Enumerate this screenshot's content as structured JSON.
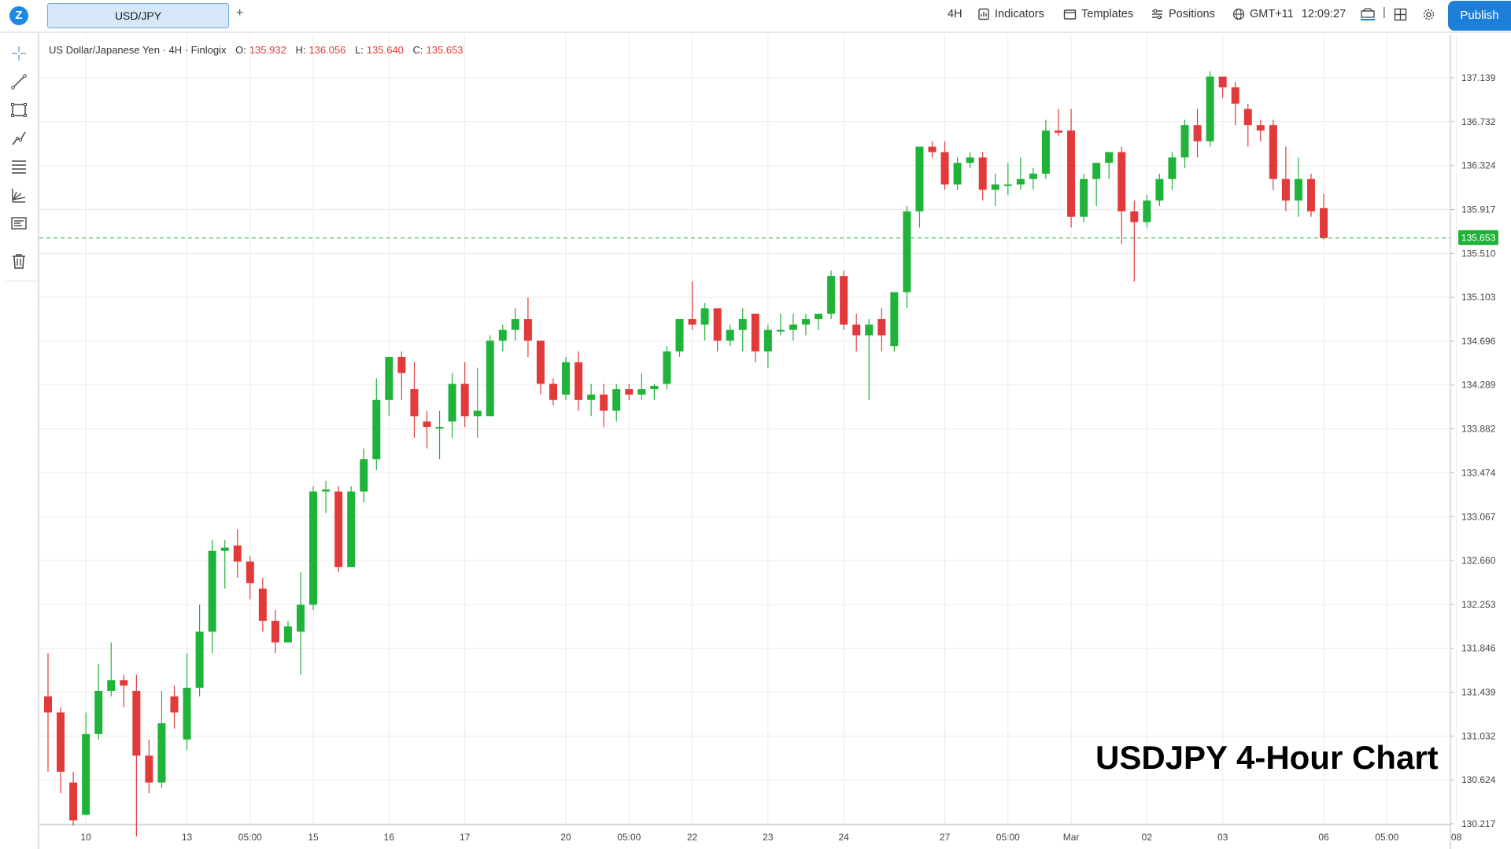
{
  "topbar": {
    "logo_letter": "Z",
    "symbol_tab": "USD/JPY",
    "add_tab": "+",
    "interval": "4H",
    "indicators": "Indicators",
    "templates": "Templates",
    "positions": "Positions",
    "timezone": "GMT+11",
    "clock": "12:09:27",
    "separator": "|",
    "publish": "Publish"
  },
  "sidebar": {
    "tools": [
      "crosshair-icon",
      "trend-line-icon",
      "rectangle-icon",
      "fib-icon",
      "parallel-channel-icon",
      "pitchfork-icon",
      "text-note-icon",
      "trash-icon"
    ]
  },
  "legend": {
    "name": "US Dollar/Japanese Yen · 4H · Finlogix",
    "o_label": "O:",
    "o": "135.932",
    "h_label": "H:",
    "h": "136.056",
    "l_label": "L:",
    "l": "135.640",
    "c_label": "C:",
    "c": "135.653"
  },
  "watermark": "USDJPY 4-Hour Chart",
  "colors": {
    "up": "#1fb33a",
    "down": "#e23a3a",
    "accent": "#1e7fd8",
    "last_price_bg": "#1fb33a"
  },
  "chart_data": {
    "type": "candlestick",
    "symbol": "USD/JPY",
    "interval": "4H",
    "last_price": "135.653",
    "ylim": [
      130.217,
      137.139
    ],
    "y_ticks": [
      "137.139",
      "136.732",
      "136.324",
      "135.917",
      "135.510",
      "135.103",
      "134.696",
      "134.289",
      "133.882",
      "133.474",
      "133.067",
      "132.660",
      "132.253",
      "131.846",
      "131.439",
      "131.032",
      "130.624",
      "130.217"
    ],
    "x_ticks": [
      {
        "label": "10",
        "i": 3
      },
      {
        "label": "13",
        "i": 11
      },
      {
        "label": "05:00",
        "i": 16
      },
      {
        "label": "15",
        "i": 21
      },
      {
        "label": "16",
        "i": 27
      },
      {
        "label": "17",
        "i": 33
      },
      {
        "label": "20",
        "i": 41
      },
      {
        "label": "05:00",
        "i": 46
      },
      {
        "label": "22",
        "i": 51
      },
      {
        "label": "23",
        "i": 57
      },
      {
        "label": "24",
        "i": 63
      },
      {
        "label": "27",
        "i": 71
      },
      {
        "label": "05:00",
        "i": 76
      },
      {
        "label": "Mar",
        "i": 81
      },
      {
        "label": "02",
        "i": 87
      },
      {
        "label": "03",
        "i": 93
      },
      {
        "label": "06",
        "i": 101
      },
      {
        "label": "05:00",
        "i": 106
      },
      {
        "label": "08",
        "i": 111.5
      }
    ],
    "candles": [
      [
        131.4,
        131.8,
        130.7,
        131.25
      ],
      [
        131.25,
        131.3,
        130.5,
        130.7
      ],
      [
        130.6,
        130.7,
        130.2,
        130.25
      ],
      [
        130.3,
        131.25,
        130.3,
        131.05
      ],
      [
        131.05,
        131.7,
        131.0,
        131.45
      ],
      [
        131.45,
        131.9,
        131.4,
        131.55
      ],
      [
        131.55,
        131.6,
        131.3,
        131.5
      ],
      [
        131.45,
        131.6,
        130.1,
        130.85
      ],
      [
        130.85,
        131.0,
        130.5,
        130.6
      ],
      [
        130.6,
        131.45,
        130.55,
        131.15
      ],
      [
        131.4,
        131.5,
        131.1,
        131.25
      ],
      [
        131.0,
        131.8,
        130.9,
        131.48
      ],
      [
        131.48,
        132.25,
        131.4,
        132.0
      ],
      [
        132.0,
        132.85,
        131.8,
        132.75
      ],
      [
        132.75,
        132.85,
        132.4,
        132.78
      ],
      [
        132.8,
        132.95,
        132.5,
        132.65
      ],
      [
        132.65,
        132.7,
        132.3,
        132.45
      ],
      [
        132.4,
        132.5,
        132.0,
        132.1
      ],
      [
        132.1,
        132.2,
        131.8,
        131.9
      ],
      [
        131.9,
        132.1,
        131.9,
        132.05
      ],
      [
        132.0,
        132.55,
        131.6,
        132.25
      ],
      [
        132.25,
        133.35,
        132.2,
        133.3
      ],
      [
        133.3,
        133.4,
        133.1,
        133.32
      ],
      [
        133.3,
        133.35,
        132.55,
        132.6
      ],
      [
        132.6,
        133.35,
        132.6,
        133.3
      ],
      [
        133.3,
        133.7,
        133.2,
        133.6
      ],
      [
        133.6,
        134.35,
        133.5,
        134.15
      ],
      [
        134.15,
        134.55,
        134.0,
        134.55
      ],
      [
        134.55,
        134.6,
        134.15,
        134.4
      ],
      [
        134.25,
        134.5,
        133.8,
        134.0
      ],
      [
        133.95,
        134.05,
        133.7,
        133.9
      ],
      [
        133.9,
        134.05,
        133.6,
        133.9
      ],
      [
        133.95,
        134.4,
        133.8,
        134.3
      ],
      [
        134.3,
        134.5,
        133.9,
        134.0
      ],
      [
        134.0,
        134.45,
        133.8,
        134.05
      ],
      [
        134.0,
        134.75,
        134.0,
        134.7
      ],
      [
        134.7,
        134.85,
        134.6,
        134.8
      ],
      [
        134.8,
        135.0,
        134.7,
        134.9
      ],
      [
        134.9,
        135.1,
        134.55,
        134.7
      ],
      [
        134.7,
        134.7,
        134.2,
        134.3
      ],
      [
        134.3,
        134.35,
        134.1,
        134.15
      ],
      [
        134.2,
        134.55,
        134.15,
        134.5
      ],
      [
        134.5,
        134.6,
        134.05,
        134.15
      ],
      [
        134.15,
        134.3,
        134.0,
        134.2
      ],
      [
        134.2,
        134.3,
        133.9,
        134.05
      ],
      [
        134.05,
        134.3,
        133.95,
        134.25
      ],
      [
        134.25,
        134.3,
        134.15,
        134.2
      ],
      [
        134.2,
        134.4,
        134.15,
        134.25
      ],
      [
        134.25,
        134.3,
        134.15,
        134.28
      ],
      [
        134.3,
        134.65,
        134.25,
        134.6
      ],
      [
        134.6,
        134.9,
        134.55,
        134.9
      ],
      [
        134.9,
        135.25,
        134.8,
        134.85
      ],
      [
        134.85,
        135.05,
        134.7,
        135.0
      ],
      [
        135.0,
        135.0,
        134.6,
        134.7
      ],
      [
        134.7,
        134.85,
        134.65,
        134.8
      ],
      [
        134.8,
        135.0,
        134.6,
        134.9
      ],
      [
        134.95,
        134.95,
        134.5,
        134.6
      ],
      [
        134.6,
        134.85,
        134.45,
        134.8
      ],
      [
        134.8,
        134.95,
        134.75,
        134.8
      ],
      [
        134.8,
        134.95,
        134.7,
        134.85
      ],
      [
        134.85,
        134.95,
        134.75,
        134.9
      ],
      [
        134.9,
        134.95,
        134.8,
        134.95
      ],
      [
        134.95,
        135.35,
        134.9,
        135.3
      ],
      [
        135.3,
        135.35,
        134.8,
        134.85
      ],
      [
        134.85,
        134.95,
        134.6,
        134.75
      ],
      [
        134.75,
        134.9,
        134.15,
        134.85
      ],
      [
        134.9,
        135.0,
        134.6,
        134.75
      ],
      [
        134.65,
        135.15,
        134.6,
        135.15
      ],
      [
        135.15,
        135.95,
        135.0,
        135.9
      ],
      [
        135.9,
        136.5,
        135.75,
        136.5
      ],
      [
        136.5,
        136.55,
        136.4,
        136.45
      ],
      [
        136.45,
        136.55,
        136.1,
        136.15
      ],
      [
        136.15,
        136.4,
        136.1,
        136.35
      ],
      [
        136.35,
        136.45,
        136.3,
        136.4
      ],
      [
        136.4,
        136.45,
        136.0,
        136.1
      ],
      [
        136.1,
        136.25,
        135.95,
        136.15
      ],
      [
        136.15,
        136.35,
        136.05,
        136.15
      ],
      [
        136.15,
        136.4,
        136.1,
        136.2
      ],
      [
        136.2,
        136.3,
        136.1,
        136.25
      ],
      [
        136.25,
        136.75,
        136.2,
        136.65
      ],
      [
        136.65,
        136.85,
        136.6,
        136.63
      ],
      [
        136.65,
        136.85,
        135.75,
        135.85
      ],
      [
        135.85,
        136.25,
        135.8,
        136.2
      ],
      [
        136.2,
        136.35,
        135.95,
        136.35
      ],
      [
        136.35,
        136.45,
        136.2,
        136.45
      ],
      [
        136.45,
        136.5,
        135.6,
        135.9
      ],
      [
        135.9,
        136.0,
        135.25,
        135.8
      ],
      [
        135.8,
        136.05,
        135.75,
        136.0
      ],
      [
        136.0,
        136.25,
        135.95,
        136.2
      ],
      [
        136.2,
        136.45,
        136.1,
        136.4
      ],
      [
        136.4,
        136.75,
        136.3,
        136.7
      ],
      [
        136.7,
        136.85,
        136.4,
        136.55
      ],
      [
        136.55,
        137.2,
        136.5,
        137.15
      ],
      [
        137.15,
        137.15,
        136.95,
        137.05
      ],
      [
        137.05,
        137.1,
        136.7,
        136.9
      ],
      [
        136.85,
        136.9,
        136.5,
        136.7
      ],
      [
        136.7,
        136.75,
        136.55,
        136.65
      ],
      [
        136.7,
        136.75,
        136.1,
        136.2
      ],
      [
        136.2,
        136.5,
        135.9,
        136.0
      ],
      [
        136.0,
        136.4,
        135.85,
        136.2
      ],
      [
        136.2,
        136.25,
        135.85,
        135.9
      ],
      [
        135.93,
        136.06,
        135.64,
        135.653
      ]
    ]
  }
}
